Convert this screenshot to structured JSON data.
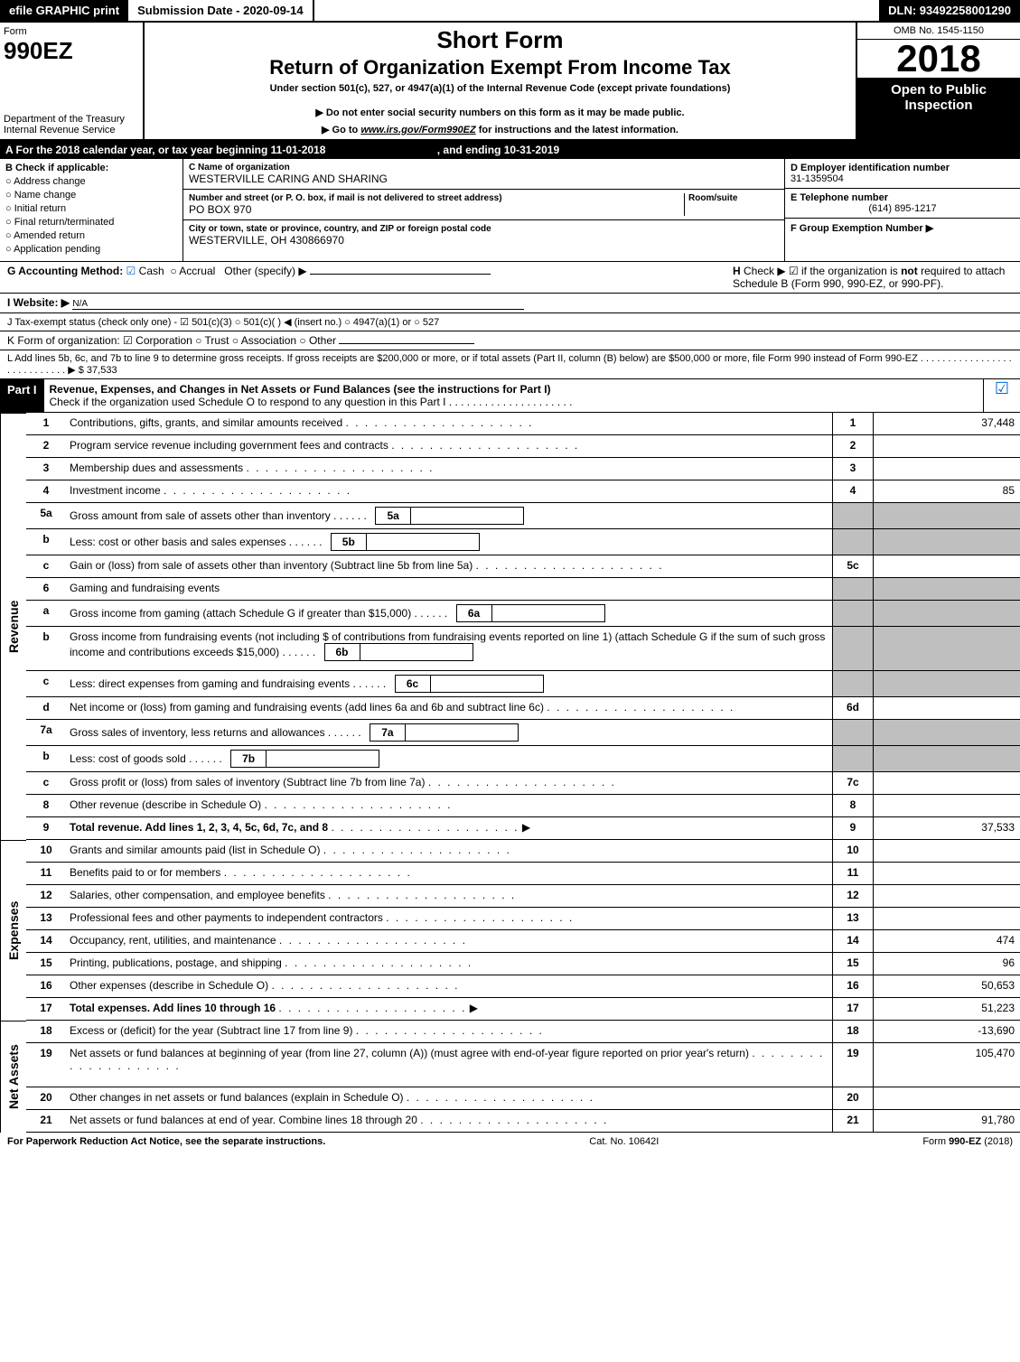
{
  "topbar": {
    "efile": "efile GRAPHIC print",
    "submission_label": "Submission Date - 2020-09-14",
    "dln": "DLN: 93492258001290"
  },
  "header": {
    "form_word": "Form",
    "form_number": "990EZ",
    "dept1": "Department of the Treasury",
    "dept2": "Internal Revenue Service",
    "short_form": "Short Form",
    "title": "Return of Organization Exempt From Income Tax",
    "subtitle": "Under section 501(c), 527, or 4947(a)(1) of the Internal Revenue Code (except private foundations)",
    "warn": "▶ Do not enter social security numbers on this form as it may be made public.",
    "goto_pre": "▶ Go to ",
    "goto_link": "www.irs.gov/Form990EZ",
    "goto_post": " for instructions and the latest information.",
    "omb": "OMB No. 1545-1150",
    "year": "2018",
    "open": "Open to Public Inspection"
  },
  "period": {
    "text_a": "A  For the 2018 calendar year, or tax year beginning 11-01-2018",
    "text_b": ", and ending 10-31-2019"
  },
  "colB": {
    "header": "B  Check if applicable:",
    "opts": [
      "Address change",
      "Name change",
      "Initial return",
      "Final return/terminated",
      "Amended return",
      "Application pending"
    ]
  },
  "colC": {
    "name_label": "C Name of organization",
    "name_val": "WESTERVILLE CARING AND SHARING",
    "addr_label": "Number and street (or P. O. box, if mail is not delivered to street address)",
    "room_label": "Room/suite",
    "addr_val": "PO BOX 970",
    "city_label": "City or town, state or province, country, and ZIP or foreign postal code",
    "city_val": "WESTERVILLE, OH   430866970"
  },
  "colD": {
    "ein_label": "D Employer identification number",
    "ein_val": "31-1359504",
    "tel_label": "E Telephone number",
    "tel_val": "(614) 895-1217",
    "grp_label": "F Group Exemption Number   ▶"
  },
  "gline": {
    "g_label": "G Accounting Method:",
    "g_cash": "Cash",
    "g_accrual": "Accrual",
    "g_other": "Other (specify) ▶",
    "h_label": "H",
    "h_text1": "Check ▶ ☑ if the organization is ",
    "h_not": "not",
    "h_text2": " required to attach Schedule B (Form 990, 990-EZ, or 990-PF)."
  },
  "iline": {
    "label": "I Website: ▶",
    "val": "N/A"
  },
  "jline": {
    "text": "J Tax-exempt status (check only one) - ☑ 501(c)(3)  ○ 501(c)(  ) ◀ (insert no.)  ○ 4947(a)(1) or  ○ 527"
  },
  "kline": {
    "text": "K Form of organization:   ☑ Corporation   ○ Trust   ○ Association   ○ Other"
  },
  "lline": {
    "text": "L Add lines 5b, 6c, and 7b to line 9 to determine gross receipts. If gross receipts are $200,000 or more, or if total assets (Part II, column (B) below) are $500,000 or more, file Form 990 instead of Form 990-EZ  .  .  .  .  .  .  .  .  .  .  .  .  .  .  .  .  .  .  .  .  .  .  .  .  .  .  .  .  ▶ $ 37,533"
  },
  "part1": {
    "badge": "Part I",
    "title": "Revenue, Expenses, and Changes in Net Assets or Fund Balances (see the instructions for Part I)",
    "checknote": "Check if the organization used Schedule O to respond to any question in this Part I .  .  .  .  .  .  .  .  .  .  .  .  .  .  .  .  .  .  .  .  ."
  },
  "sections": {
    "revenue": "Revenue",
    "expenses": "Expenses",
    "netassets": "Net Assets"
  },
  "rows": [
    {
      "n": "1",
      "desc": "Contributions, gifts, grants, and similar amounts received",
      "box": "1",
      "val": "37,448"
    },
    {
      "n": "2",
      "desc": "Program service revenue including government fees and contracts",
      "box": "2",
      "val": ""
    },
    {
      "n": "3",
      "desc": "Membership dues and assessments",
      "box": "3",
      "val": ""
    },
    {
      "n": "4",
      "desc": "Investment income",
      "box": "4",
      "val": "85"
    },
    {
      "n": "5a",
      "desc": "Gross amount from sale of assets other than inventory",
      "inline": "5a",
      "shaded": true
    },
    {
      "n": "b",
      "desc": "Less: cost or other basis and sales expenses",
      "inline": "5b",
      "shaded": true
    },
    {
      "n": "c",
      "desc": "Gain or (loss) from sale of assets other than inventory (Subtract line 5b from line 5a)",
      "box": "5c",
      "val": ""
    },
    {
      "n": "6",
      "desc": "Gaming and fundraising events",
      "shaded": true
    },
    {
      "n": "a",
      "desc": "Gross income from gaming (attach Schedule G if greater than $15,000)",
      "inline": "6a",
      "shaded": true
    },
    {
      "n": "b",
      "desc": "Gross income from fundraising events (not including $                       of contributions from fundraising events reported on line 1) (attach Schedule G if the sum of such gross income and contributions exceeds $15,000)",
      "inline": "6b",
      "shaded": true,
      "tall": true
    },
    {
      "n": "c",
      "desc": "Less: direct expenses from gaming and fundraising events",
      "inline": "6c",
      "shaded": true
    },
    {
      "n": "d",
      "desc": "Net income or (loss) from gaming and fundraising events (add lines 6a and 6b and subtract line 6c)",
      "box": "6d",
      "val": ""
    },
    {
      "n": "7a",
      "desc": "Gross sales of inventory, less returns and allowances",
      "inline": "7a",
      "shaded": true
    },
    {
      "n": "b",
      "desc": "Less: cost of goods sold",
      "inline": "7b",
      "shaded": true
    },
    {
      "n": "c",
      "desc": "Gross profit or (loss) from sales of inventory (Subtract line 7b from line 7a)",
      "box": "7c",
      "val": ""
    },
    {
      "n": "8",
      "desc": "Other revenue (describe in Schedule O)",
      "box": "8",
      "val": ""
    },
    {
      "n": "9",
      "desc": "Total revenue. Add lines 1, 2, 3, 4, 5c, 6d, 7c, and 8",
      "box": "9",
      "val": "37,533",
      "bold": true,
      "arrow": true
    }
  ],
  "exp_rows": [
    {
      "n": "10",
      "desc": "Grants and similar amounts paid (list in Schedule O)",
      "box": "10",
      "val": ""
    },
    {
      "n": "11",
      "desc": "Benefits paid to or for members",
      "box": "11",
      "val": ""
    },
    {
      "n": "12",
      "desc": "Salaries, other compensation, and employee benefits",
      "box": "12",
      "val": ""
    },
    {
      "n": "13",
      "desc": "Professional fees and other payments to independent contractors",
      "box": "13",
      "val": ""
    },
    {
      "n": "14",
      "desc": "Occupancy, rent, utilities, and maintenance",
      "box": "14",
      "val": "474"
    },
    {
      "n": "15",
      "desc": "Printing, publications, postage, and shipping",
      "box": "15",
      "val": "96"
    },
    {
      "n": "16",
      "desc": "Other expenses (describe in Schedule O)",
      "box": "16",
      "val": "50,653"
    },
    {
      "n": "17",
      "desc": "Total expenses. Add lines 10 through 16",
      "box": "17",
      "val": "51,223",
      "bold": true,
      "arrow": true
    }
  ],
  "net_rows": [
    {
      "n": "18",
      "desc": "Excess or (deficit) for the year (Subtract line 17 from line 9)",
      "box": "18",
      "val": "-13,690"
    },
    {
      "n": "19",
      "desc": "Net assets or fund balances at beginning of year (from line 27, column (A)) (must agree with end-of-year figure reported on prior year's return)",
      "box": "19",
      "val": "105,470",
      "tall": true
    },
    {
      "n": "20",
      "desc": "Other changes in net assets or fund balances (explain in Schedule O)",
      "box": "20",
      "val": ""
    },
    {
      "n": "21",
      "desc": "Net assets or fund balances at end of year. Combine lines 18 through 20",
      "box": "21",
      "val": "91,780"
    }
  ],
  "footer": {
    "left": "For Paperwork Reduction Act Notice, see the separate instructions.",
    "mid": "Cat. No. 10642I",
    "right": "Form 990-EZ (2018)"
  }
}
